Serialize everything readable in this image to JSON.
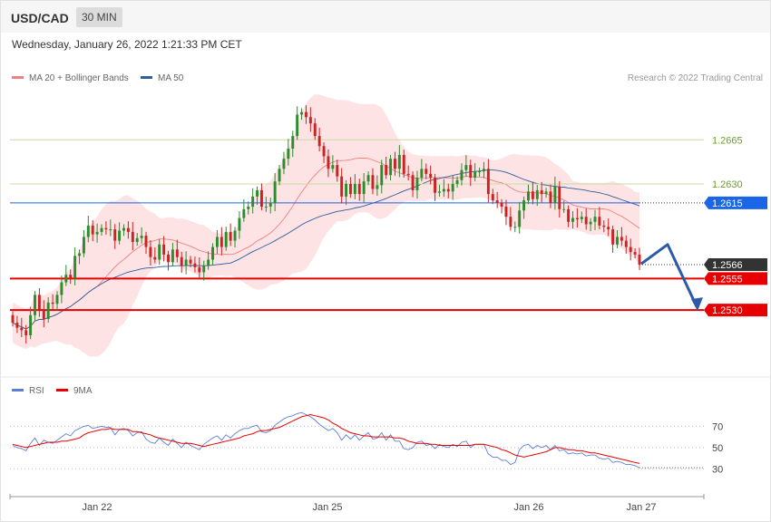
{
  "header": {
    "pair": "USD/CAD",
    "timeframe": "30 MIN",
    "datetime": "Wednesday, January 26, 2022 1:21:33 PM CET"
  },
  "legend": {
    "ma20_label": "MA 20 + Bollinger Bands",
    "ma20_color": "#f08080",
    "ma50_label": "MA 50",
    "ma50_color": "#2f5d9e",
    "rsi_label": "RSI",
    "rsi_color": "#5b7fd6",
    "ma9_label": "9MA",
    "ma9_color": "#e60000"
  },
  "credit": "Research © 2022 Trading Central",
  "chart_data": [
    {
      "type": "candlestick",
      "title": "",
      "ylim": [
        1.2487,
        1.2704
      ],
      "x_ticks": [
        "Jan 22",
        "Jan 25",
        "Jan 26",
        "Jan 27"
      ],
      "levels": [
        {
          "label": "1.2665",
          "value": 1.2665,
          "kind": "resistance",
          "color": "#99bb55"
        },
        {
          "label": "1.2630",
          "value": 1.263,
          "kind": "resistance",
          "color": "#99bb55"
        },
        {
          "label": "1.2615",
          "value": 1.2615,
          "kind": "pivot",
          "color": "#1a66e6"
        },
        {
          "label": "1.2566",
          "value": 1.2566,
          "kind": "last_price",
          "color": "#333333"
        },
        {
          "label": "1.2555",
          "value": 1.2555,
          "kind": "support",
          "color": "#e60000"
        },
        {
          "label": "1.2530",
          "value": 1.253,
          "kind": "support",
          "color": "#e60000"
        }
      ],
      "close": [
        1.252,
        1.2516,
        1.2514,
        1.251,
        1.2526,
        1.2542,
        1.253,
        1.2523,
        1.2536,
        1.2535,
        1.2542,
        1.2552,
        1.2558,
        1.2555,
        1.2573,
        1.2575,
        1.2588,
        1.2597,
        1.259,
        1.2592,
        1.2595,
        1.2594,
        1.2594,
        1.2585,
        1.2593,
        1.2595,
        1.2592,
        1.2584,
        1.2587,
        1.2589,
        1.258,
        1.2572,
        1.257,
        1.2582,
        1.2574,
        1.2568,
        1.2578,
        1.2572,
        1.2565,
        1.257,
        1.2567,
        1.2564,
        1.256,
        1.2565,
        1.257,
        1.258,
        1.2588,
        1.258,
        1.2592,
        1.2585,
        1.2593,
        1.2603,
        1.261,
        1.2612,
        1.262,
        1.2625,
        1.2612,
        1.2612,
        1.2615,
        1.2632,
        1.2642,
        1.265,
        1.2658,
        1.2668,
        1.2685,
        1.2687,
        1.2683,
        1.2678,
        1.2668,
        1.266,
        1.2652,
        1.2642,
        1.2645,
        1.2636,
        1.262,
        1.263,
        1.2622,
        1.263,
        1.2622,
        1.2632,
        1.2637,
        1.2626,
        1.2629,
        1.2645,
        1.2637,
        1.265,
        1.2642,
        1.2653,
        1.2638,
        1.2637,
        1.2625,
        1.2635,
        1.2642,
        1.2638,
        1.2635,
        1.2623,
        1.2624,
        1.2626,
        1.2624,
        1.263,
        1.2633,
        1.2641,
        1.2645,
        1.2635,
        1.264,
        1.264,
        1.2642,
        1.2622,
        1.2617,
        1.2615,
        1.2612,
        1.2604,
        1.2596,
        1.2596,
        1.2609,
        1.2617,
        1.2624,
        1.2618,
        1.2625,
        1.2622,
        1.2624,
        1.2615,
        1.2628,
        1.261,
        1.261,
        1.26,
        1.2603,
        1.2602,
        1.2604,
        1.2598,
        1.26,
        1.2604,
        1.2597,
        1.2596,
        1.2594,
        1.2582,
        1.2588,
        1.2585,
        1.258,
        1.2576,
        1.2574,
        1.2566
      ]
    },
    {
      "type": "line",
      "title": "RSI",
      "ylim": [
        20,
        90
      ],
      "y_ticks": [
        30,
        50,
        70
      ],
      "series": [
        {
          "name": "RSI",
          "values": [
            52,
            50,
            49,
            47,
            54,
            59,
            52,
            57,
            55,
            54,
            57,
            60,
            63,
            61,
            66,
            68,
            70,
            71,
            68,
            69,
            70,
            69,
            69,
            62,
            67,
            68,
            66,
            61,
            64,
            65,
            58,
            55,
            54,
            59,
            55,
            52,
            58,
            54,
            50,
            55,
            52,
            50,
            48,
            53,
            56,
            59,
            61,
            57,
            62,
            59,
            63,
            66,
            68,
            68,
            70,
            71,
            65,
            64,
            66,
            71,
            74,
            77,
            79,
            80,
            82,
            83,
            81,
            79,
            76,
            72,
            69,
            66,
            68,
            64,
            57,
            62,
            58,
            62,
            57,
            61,
            64,
            58,
            59,
            64,
            57,
            62,
            56,
            56,
            49,
            48,
            50,
            55,
            56,
            52,
            53,
            49,
            53,
            51,
            50,
            53,
            51,
            55,
            56,
            50,
            53,
            53,
            53,
            44,
            41,
            41,
            38,
            38,
            34,
            36,
            48,
            52,
            53,
            49,
            52,
            50,
            52,
            48,
            52,
            47,
            48,
            44,
            45,
            44,
            45,
            42,
            43,
            43,
            40,
            39,
            40,
            36,
            37,
            36,
            34,
            34,
            33,
            31
          ]
        },
        {
          "name": "9MA",
          "values": [
            53,
            52,
            51,
            50,
            51,
            52,
            53,
            54,
            55,
            55,
            55,
            56,
            56,
            57,
            58,
            59,
            62,
            64,
            65,
            66,
            67,
            67,
            68,
            67,
            67,
            67,
            67,
            65,
            65,
            64,
            63,
            62,
            60,
            59,
            58,
            57,
            56,
            55,
            54,
            54,
            54,
            53,
            52,
            51,
            52,
            53,
            54,
            55,
            56,
            57,
            58,
            59,
            61,
            62,
            63,
            65,
            66,
            66,
            67,
            68,
            69,
            71,
            73,
            75,
            77,
            79,
            80,
            81,
            80,
            79,
            78,
            76,
            73,
            71,
            68,
            66,
            64,
            63,
            62,
            61,
            61,
            60,
            60,
            60,
            60,
            60,
            59,
            59,
            58,
            56,
            55,
            54,
            54,
            54,
            53,
            53,
            52,
            52,
            52,
            52,
            52,
            52,
            52,
            52,
            53,
            53,
            53,
            52,
            51,
            50,
            48,
            47,
            45,
            43,
            42,
            41,
            42,
            43,
            44,
            45,
            46,
            48,
            50,
            50,
            49,
            48,
            48,
            47,
            47,
            46,
            45,
            45,
            44,
            43,
            42,
            41,
            40,
            39,
            38,
            37,
            36,
            35
          ]
        }
      ]
    }
  ]
}
